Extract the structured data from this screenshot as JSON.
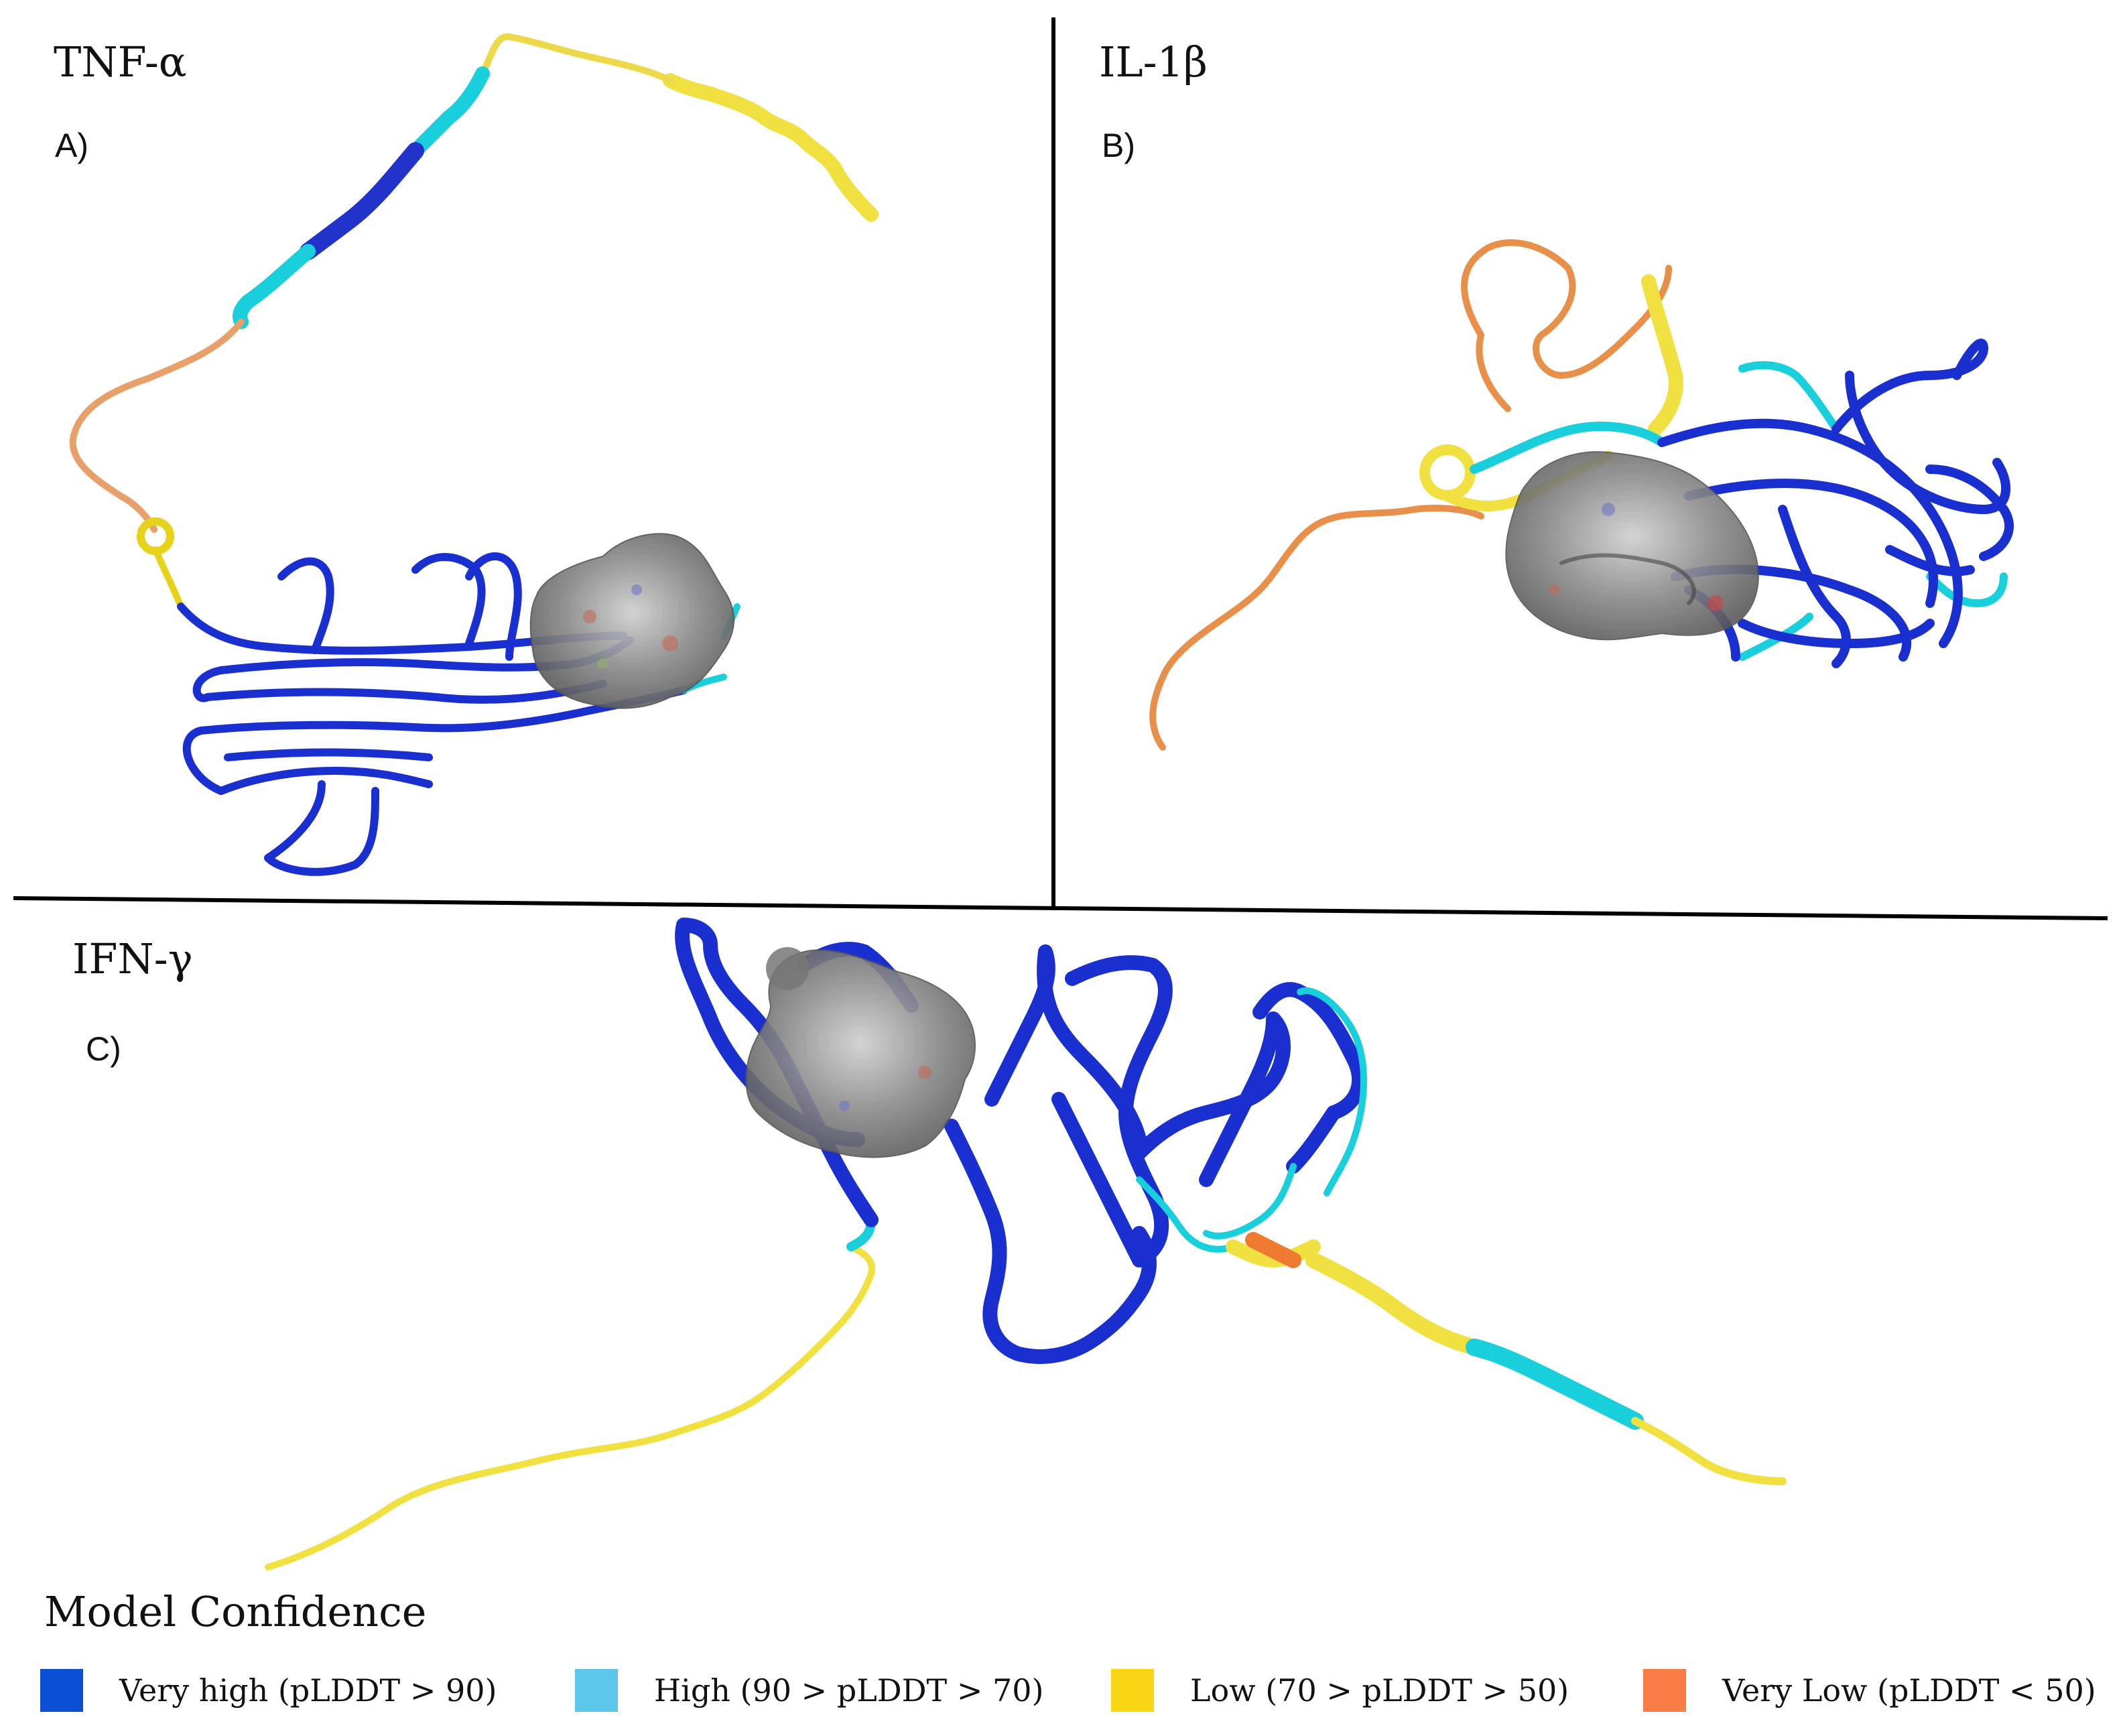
{
  "panels": [
    {
      "protein": "TNF-α",
      "label": "A)"
    },
    {
      "protein": "IL-1β",
      "label": "B)"
    },
    {
      "protein": "IFN-γ",
      "label": "C)"
    }
  ],
  "legend": {
    "title": "Model Confidence",
    "items": [
      {
        "label": "Very  high (pLDDT > 90)",
        "color": "#0b4fd4"
      },
      {
        "label": "High (90 > pLDDT > 70)",
        "color": "#5bc6ea"
      },
      {
        "label": "Low (70 > pLDDT > 50)",
        "color": "#f9d613"
      },
      {
        "label": "Very  Low (pLDDT < 50)",
        "color": "#f97b45"
      }
    ]
  },
  "colors": {
    "very_high": "#1a2fd0",
    "high": "#19cfdc",
    "low": "#f0e040",
    "very_low": "#e8904a",
    "ligand_surface": "#6f6f6f",
    "divider": "#000000"
  }
}
